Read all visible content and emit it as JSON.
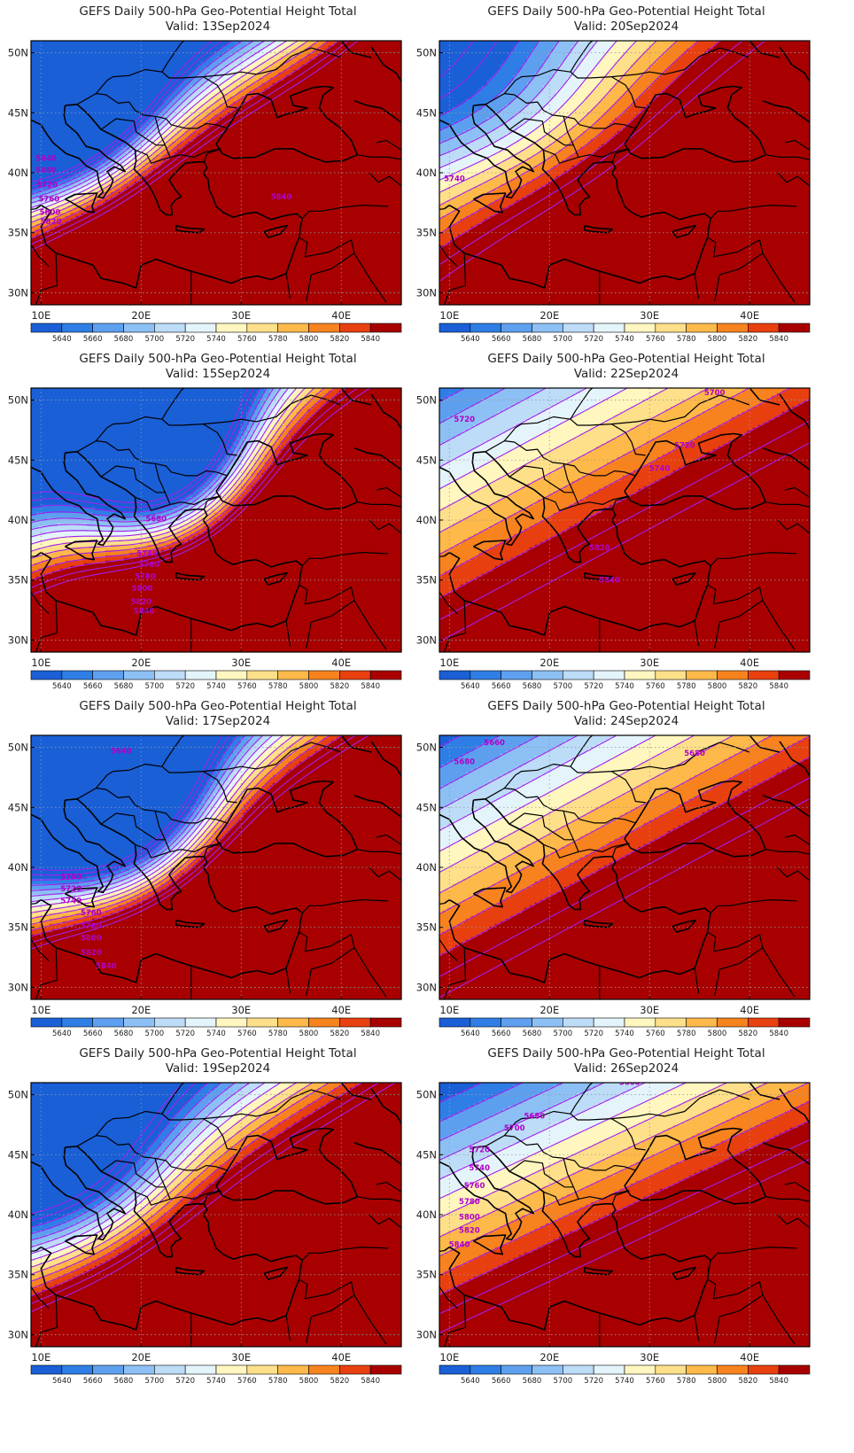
{
  "title": "GEFS Daily 500-hPa Geo-Potential Height Total",
  "valid_prefix": "Valid:",
  "lat_labels": [
    "50N",
    "45N",
    "40N",
    "35N",
    "30N"
  ],
  "lon_labels": [
    "10E",
    "20E",
    "30E",
    "40E"
  ],
  "colorbar": {
    "labels": [
      "5640",
      "5660",
      "5680",
      "5700",
      "5720",
      "5740",
      "5760",
      "5780",
      "5800",
      "5820",
      "5840"
    ],
    "colors": [
      "#1a5fd6",
      "#2f7ee6",
      "#5ea0ef",
      "#8dc0f5",
      "#bcdcf8",
      "#e4f4fb",
      "#fff7bf",
      "#ffe08a",
      "#fdb94a",
      "#f7831f",
      "#e8400f",
      "#a80000"
    ]
  },
  "contour_color": "#a020f0",
  "panels": [
    {
      "date": "13Sep2024",
      "labels": [
        "5640",
        "5680",
        "5720",
        "5760",
        "5800",
        "5820",
        "5840"
      ]
    },
    {
      "date": "20Sep2024",
      "labels": [
        "5740"
      ]
    },
    {
      "date": "15Sep2024",
      "labels": [
        "5680",
        "5740",
        "5760",
        "5780",
        "5800",
        "5820",
        "5840"
      ]
    },
    {
      "date": "22Sep2024",
      "labels": [
        "5700",
        "5720",
        "5720",
        "5740",
        "5820",
        "5840"
      ]
    },
    {
      "date": "17Sep2024",
      "labels": [
        "5640",
        "5700",
        "5720",
        "5740",
        "5760",
        "5780",
        "5800",
        "5820",
        "5840"
      ]
    },
    {
      "date": "24Sep2024",
      "labels": [
        "5660",
        "5680",
        "5680"
      ]
    },
    {
      "date": "19Sep2024",
      "labels": []
    },
    {
      "date": "26Sep2024",
      "labels": [
        "5660",
        "5680",
        "5700",
        "5720",
        "5740",
        "5760",
        "5780",
        "5800",
        "5820",
        "5840"
      ]
    }
  ]
}
